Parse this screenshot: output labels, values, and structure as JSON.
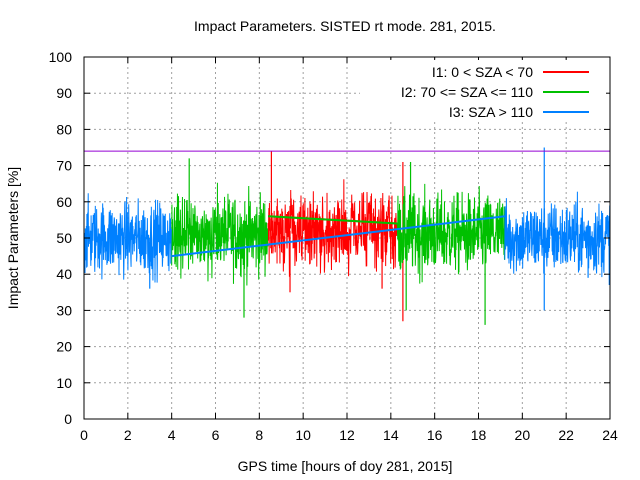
{
  "chart_data": {
    "type": "line",
    "title": "Impact Parameters. SISTED rt mode. 281, 2015.",
    "xlabel": "GPS time [hours of doy 281, 2015]",
    "ylabel": "Impact Parameters [%]",
    "xlim": [
      0,
      24
    ],
    "ylim": [
      0,
      100
    ],
    "xticks": [
      "0",
      "2",
      "4",
      "6",
      "8",
      "10",
      "12",
      "14",
      "16",
      "18",
      "20",
      "22",
      "24"
    ],
    "yticks": [
      "0",
      "10",
      "20",
      "30",
      "40",
      "50",
      "60",
      "70",
      "80",
      "90",
      "100"
    ],
    "grid": true,
    "legend_position": "top-right",
    "colors": {
      "I1": "#ff0000",
      "I2": "#00c000",
      "I3": "#0080ff",
      "threshold": "#9400d3"
    },
    "threshold": {
      "y": 74
    },
    "series": [
      {
        "name": "I1: 0 < SZA < 70",
        "key": "I1",
        "segments": [
          [
            8.4,
            14.3
          ]
        ],
        "mean": 52,
        "spread": 5,
        "spikes": [
          [
            8.55,
            74
          ],
          [
            14.55,
            71
          ],
          [
            14.55,
            27
          ],
          [
            9.4,
            35
          ],
          [
            13.6,
            36
          ]
        ],
        "trend": [
          [
            8.4,
            56
          ],
          [
            14.3,
            54
          ]
        ]
      },
      {
        "name": "I2: 70 <= SZA <= 110",
        "key": "I2",
        "segments": [
          [
            4.0,
            8.4
          ],
          [
            14.3,
            19.2
          ]
        ],
        "mean": 51,
        "spread": 5.5,
        "spikes": [
          [
            4.8,
            72
          ],
          [
            7.3,
            28
          ],
          [
            14.9,
            71
          ],
          [
            18.3,
            26
          ],
          [
            14.7,
            30
          ]
        ],
        "trend": [
          [
            8.4,
            56
          ],
          [
            14.3,
            54
          ]
        ]
      },
      {
        "name": "I3: SZA > 110",
        "key": "I3",
        "segments": [
          [
            0.0,
            4.0
          ],
          [
            19.2,
            24.0
          ]
        ],
        "mean": 50,
        "spread": 5,
        "spikes": [
          [
            21.0,
            75
          ],
          [
            21.0,
            30
          ],
          [
            3.0,
            36
          ],
          [
            23.0,
            39
          ]
        ],
        "trend": [
          [
            4.0,
            45
          ],
          [
            19.2,
            56
          ]
        ]
      }
    ]
  }
}
